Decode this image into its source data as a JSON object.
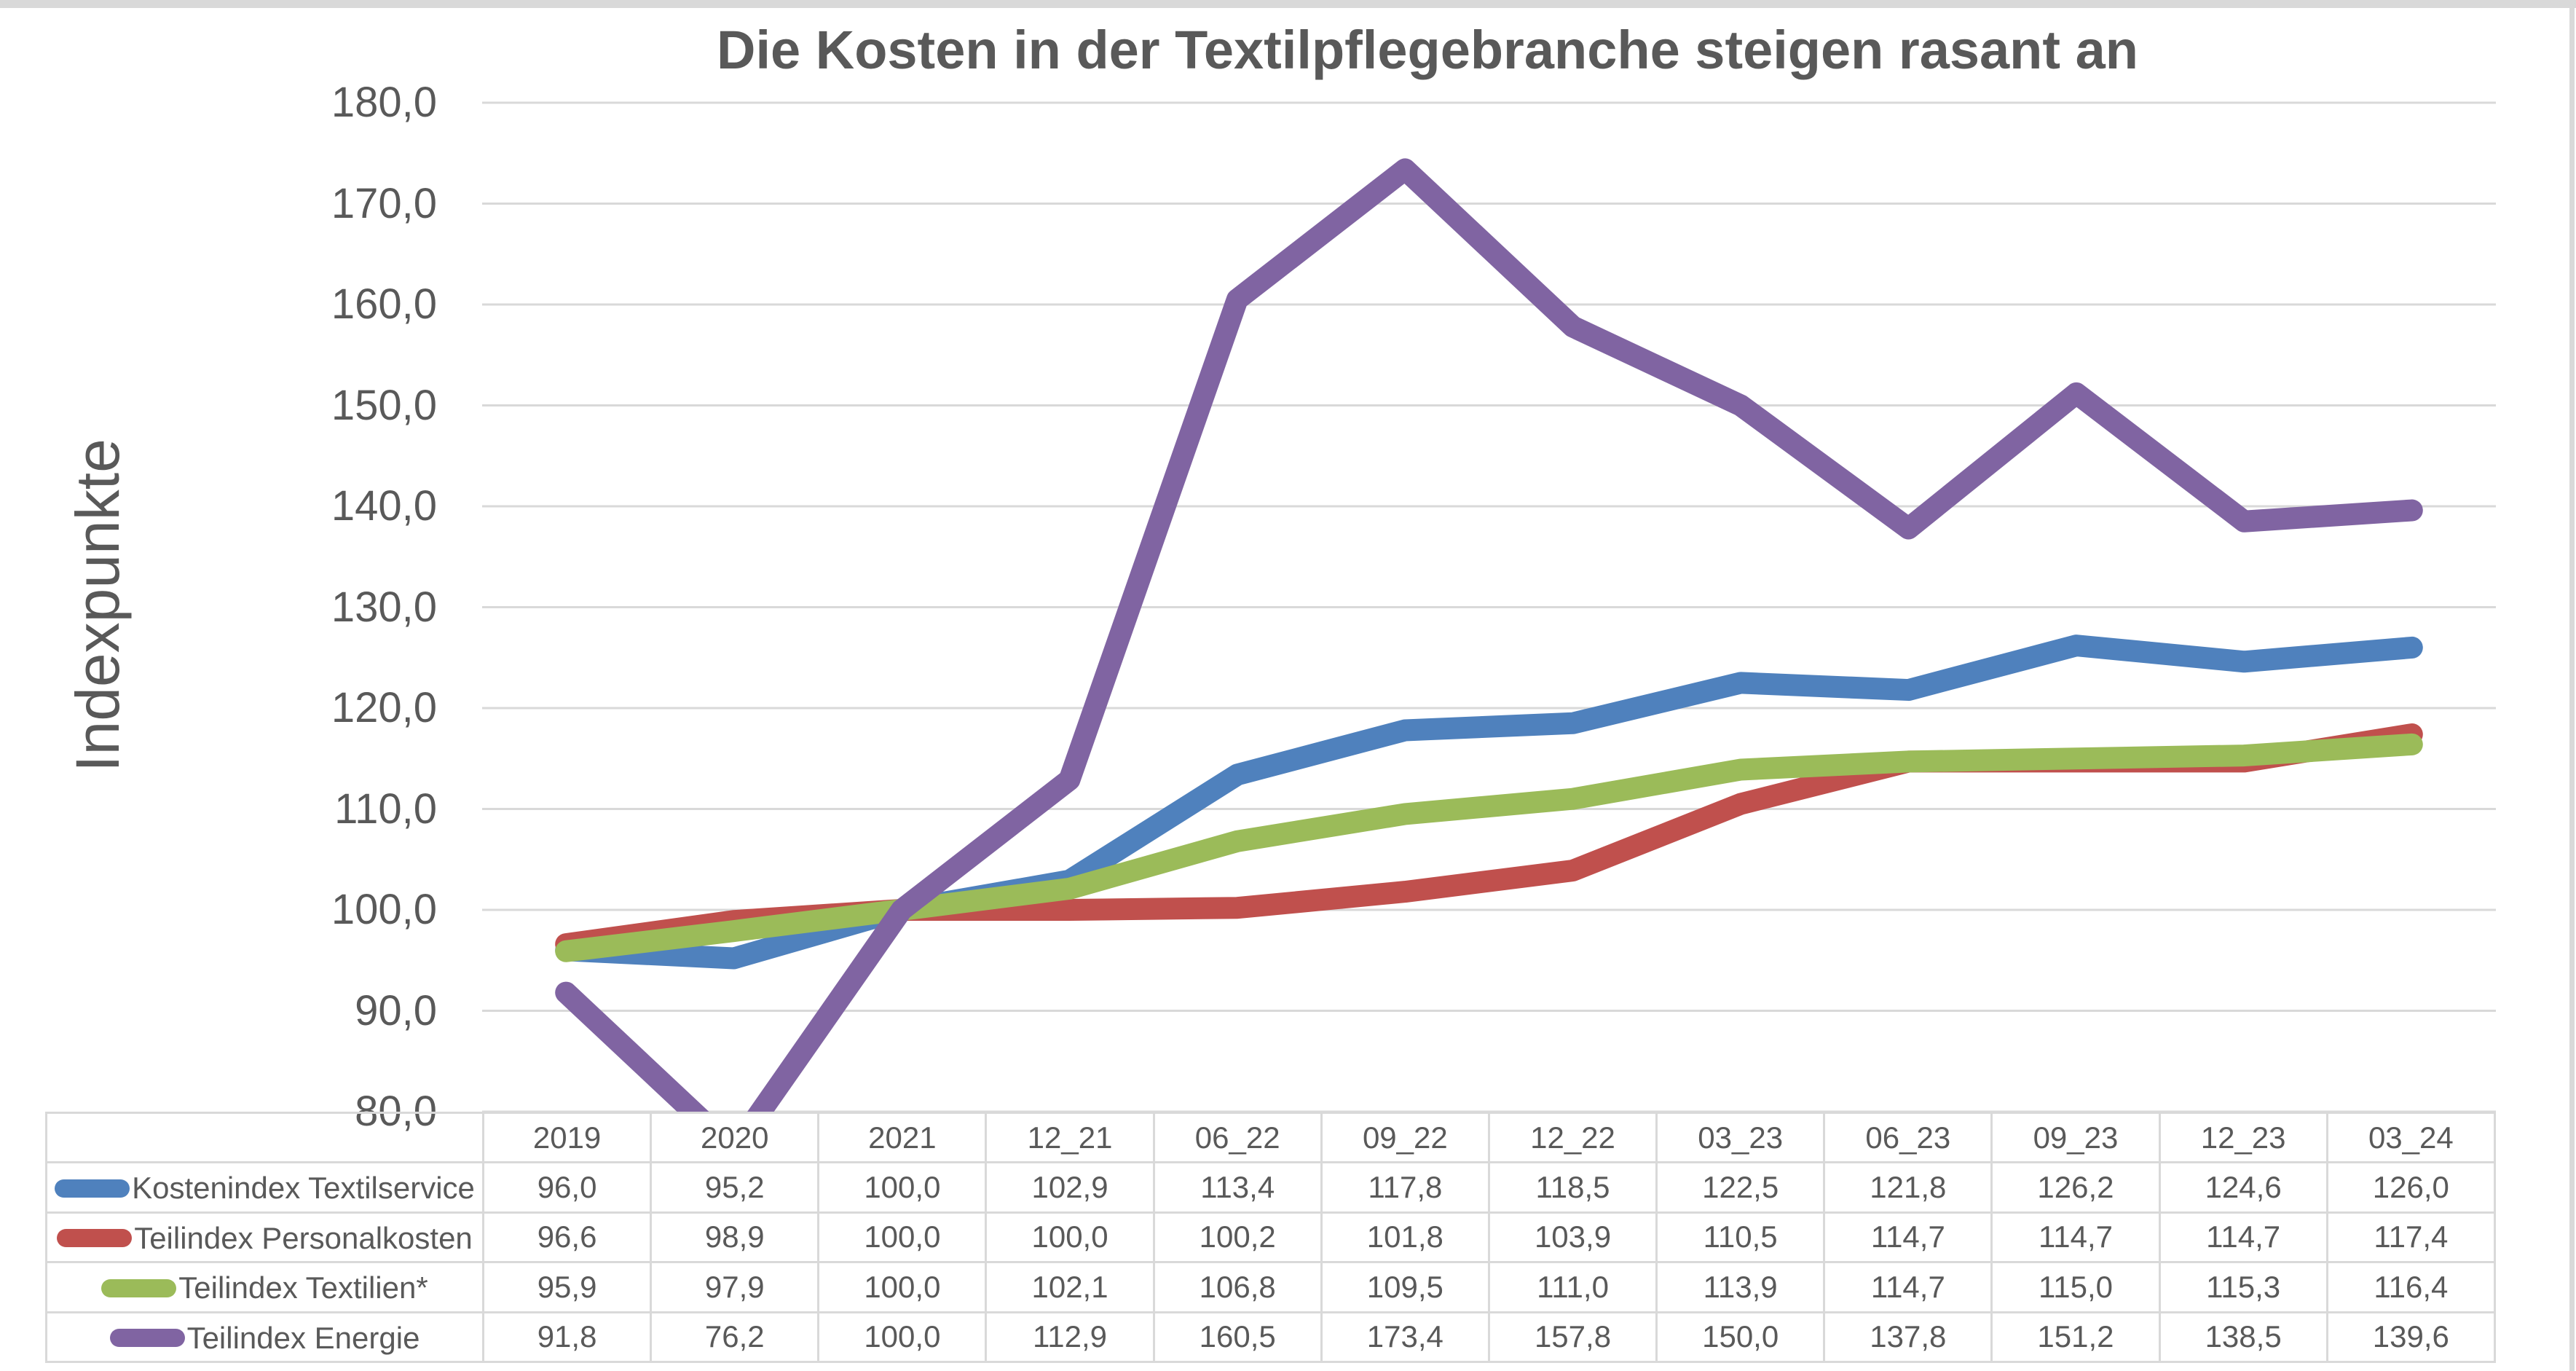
{
  "page": {
    "title": "Die Kosten in der Textilpflegebranche steigen rasant an",
    "y_axis_title": "Indexpunkte"
  },
  "colors": {
    "text": "#595959",
    "gridline": "#d9d9d9",
    "table_border": "#d9d9d9",
    "edge_strip": "#d9d9d9"
  },
  "chart_data": {
    "type": "line",
    "title": "Die Kosten in der Textilpflegebranche steigen rasant an",
    "xlabel": "",
    "ylabel": "Indexpunkte",
    "categories": [
      "2019",
      "2020",
      "2021",
      "12_21",
      "06_22",
      "09_22",
      "12_22",
      "03_23",
      "06_23",
      "09_23",
      "12_23",
      "03_24"
    ],
    "series": [
      {
        "name": "Kostenindex Textilservice",
        "color": "#4F81BD",
        "values": [
          96.0,
          95.2,
          100.0,
          102.9,
          113.4,
          117.8,
          118.5,
          122.5,
          121.8,
          126.2,
          124.6,
          126.0
        ]
      },
      {
        "name": "Teilindex Personalkosten",
        "color": "#C0504D",
        "values": [
          96.6,
          98.9,
          100.0,
          100.0,
          100.2,
          101.8,
          103.9,
          110.5,
          114.7,
          114.7,
          114.7,
          117.4
        ]
      },
      {
        "name": "Teilindex Textilien*",
        "color": "#9BBB59",
        "values": [
          95.9,
          97.9,
          100.0,
          102.1,
          106.8,
          109.5,
          111.0,
          113.9,
          114.7,
          115.0,
          115.3,
          116.4
        ]
      },
      {
        "name": "Teilindex Energie",
        "color": "#8064A2",
        "values": [
          91.8,
          76.2,
          100.0,
          112.9,
          160.5,
          173.4,
          157.8,
          150.0,
          137.8,
          151.2,
          138.5,
          139.6
        ]
      }
    ],
    "ylim": [
      80,
      180
    ],
    "ytick_step": 10,
    "ytick_labels": [
      "180,0",
      "170,0",
      "160,0",
      "150,0",
      "140,0",
      "130,0",
      "120,0",
      "110,0",
      "100,0",
      "90,0",
      "80,0"
    ],
    "grid": "horizontal",
    "legend_position": "table-left",
    "decimal_separator": ",",
    "values_below_axis_clipped": true
  }
}
